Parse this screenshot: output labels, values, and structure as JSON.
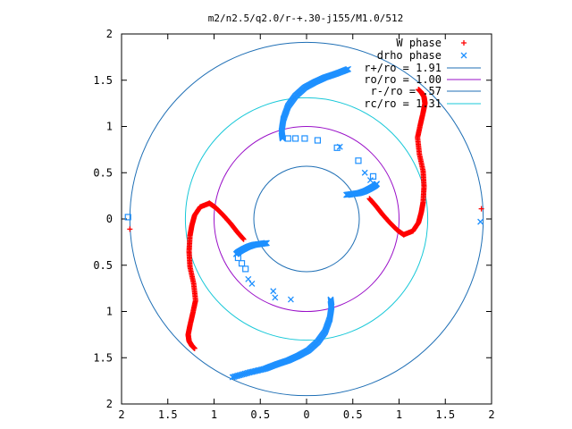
{
  "chart_data": {
    "type": "scatter",
    "title": "m2/n2.5/q2.0/r-+.30-j155/M1.0/512",
    "xlabel": "",
    "ylabel": "",
    "xlim": [
      -2,
      2
    ],
    "ylim": [
      -2,
      2
    ],
    "x_tick_labels": [
      "2",
      "1.5",
      "1",
      "0.5",
      "0",
      "0.5",
      "1",
      "1.5",
      "2"
    ],
    "y_tick_labels": [
      "2",
      "1.5",
      "1",
      "0.5",
      "0",
      "0.5",
      "1",
      "1.5",
      "2"
    ],
    "grid": false,
    "legend_position": "top-right",
    "circles": [
      {
        "name": "r+/ro = 1.91",
        "radius": 1.91,
        "color": "#1f6fb5"
      },
      {
        "name": "ro/ro = 1.00",
        "radius": 1.0,
        "color": "#9a10c8"
      },
      {
        "name": "r-/ro = .57",
        "radius": 0.57,
        "color": "#1f6fb5"
      },
      {
        "name": "rc/ro = 1.31",
        "radius": 1.31,
        "color": "#18c8d8"
      }
    ],
    "series": [
      {
        "name": "W phase",
        "marker": "plus",
        "color": "#ff0000",
        "arms": [
          {
            "x": [
              1.05,
              1.15,
              1.21,
              1.24,
              1.26,
              1.27,
              1.26,
              1.22,
              1.2,
              1.23,
              1.26,
              1.28,
              1.27,
              1.24,
              1.21
            ],
            "y": [
              -0.17,
              -0.13,
              -0.04,
              0.07,
              0.18,
              0.35,
              0.52,
              0.7,
              0.88,
              1.02,
              1.15,
              1.25,
              1.32,
              1.37,
              1.4
            ]
          },
          {
            "x": [
              -1.05,
              -1.15,
              -1.21,
              -1.24,
              -1.26,
              -1.27,
              -1.26,
              -1.22,
              -1.2,
              -1.23,
              -1.26,
              -1.28,
              -1.27,
              -1.24,
              -1.21
            ],
            "y": [
              0.17,
              0.13,
              0.04,
              -0.07,
              -0.18,
              -0.35,
              -0.52,
              -0.7,
              -0.88,
              -1.02,
              -1.15,
              -1.25,
              -1.32,
              -1.37,
              -1.4
            ]
          },
          {
            "x": [
              1.05,
              0.98,
              0.9,
              0.82,
              0.75,
              0.68
            ],
            "y": [
              -0.17,
              -0.12,
              -0.04,
              0.05,
              0.14,
              0.22
            ]
          },
          {
            "x": [
              -1.05,
              -0.98,
              -0.9,
              -0.82,
              -0.75,
              -0.68
            ],
            "y": [
              0.17,
              0.12,
              0.04,
              -0.05,
              -0.14,
              -0.22
            ]
          }
        ],
        "outliers": {
          "x": [
            1.89,
            -1.91
          ],
          "y": [
            0.11,
            -0.11
          ]
        }
      },
      {
        "name": "drho phase",
        "marker": "x",
        "color": "#1e90ff",
        "arms": [
          {
            "x": [
              -0.26,
              -0.27,
              -0.25,
              -0.2,
              -0.12,
              -0.02,
              0.09,
              0.2,
              0.32,
              0.45
            ],
            "y": [
              0.87,
              0.95,
              1.08,
              1.22,
              1.33,
              1.42,
              1.48,
              1.53,
              1.57,
              1.62
            ]
          },
          {
            "x": [
              0.26,
              0.27,
              0.25,
              0.2,
              0.12,
              0.02,
              -0.09,
              -0.2,
              -0.32,
              -0.45,
              -0.62,
              -0.8
            ],
            "y": [
              -0.87,
              -0.95,
              -1.08,
              -1.22,
              -1.33,
              -1.42,
              -1.48,
              -1.53,
              -1.57,
              -1.62,
              -1.66,
              -1.71
            ]
          },
          {
            "x": [
              0.43,
              0.5,
              0.57,
              0.63,
              0.69,
              0.74,
              0.76
            ],
            "y": [
              0.26,
              0.27,
              0.28,
              0.3,
              0.33,
              0.36,
              0.38
            ]
          },
          {
            "x": [
              -0.43,
              -0.5,
              -0.57,
              -0.63,
              -0.69,
              -0.74,
              -0.76
            ],
            "y": [
              -0.26,
              -0.27,
              -0.28,
              -0.3,
              -0.33,
              -0.36,
              -0.38
            ]
          }
        ],
        "open_squares": {
          "x": [
            -0.2,
            -0.12,
            -0.02,
            0.12,
            0.33,
            0.56,
            0.72,
            -0.74,
            -0.7,
            -0.66,
            -1.93
          ],
          "y": [
            0.87,
            0.87,
            0.87,
            0.85,
            0.77,
            0.63,
            0.46,
            -0.42,
            -0.48,
            -0.54,
            0.02
          ]
        },
        "sparse_x": {
          "x": [
            0.36,
            0.63,
            0.69,
            -0.36,
            -0.63,
            -0.59,
            -0.34,
            -0.17
          ],
          "y": [
            0.78,
            0.5,
            0.42,
            -0.78,
            -0.65,
            -0.7,
            -0.85,
            -0.87
          ]
        },
        "outliers": {
          "x": [
            1.88
          ],
          "y": [
            -0.03
          ]
        }
      }
    ]
  }
}
